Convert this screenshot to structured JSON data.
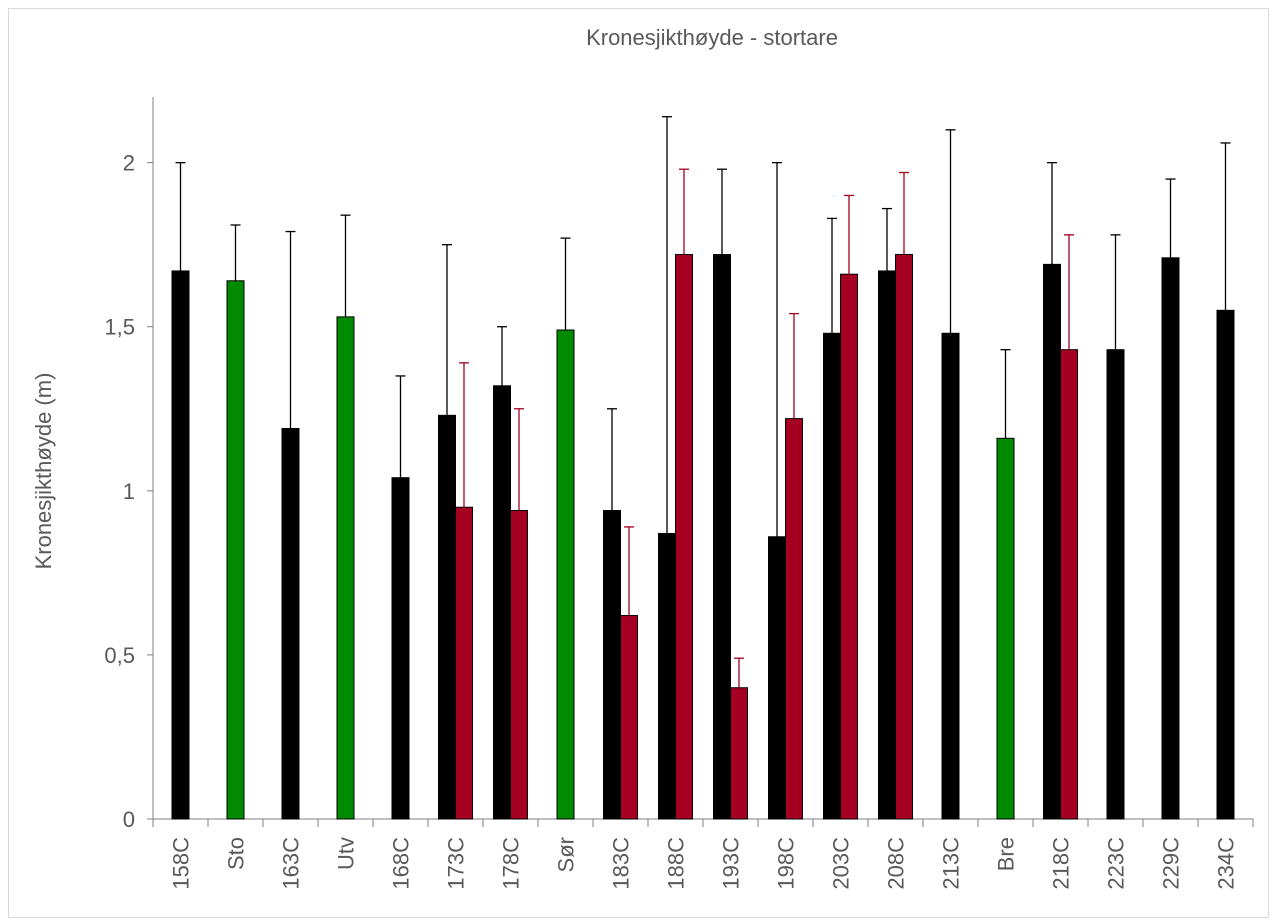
{
  "chart_data": {
    "type": "bar",
    "title": "Kronesjikthøyde - stortare",
    "xlabel": "",
    "ylabel": "Kronesjikthøyde (m)",
    "ylim": [
      0,
      2.2
    ],
    "yticks": [
      0,
      0.5,
      1,
      1.5,
      2
    ],
    "ytick_labels": [
      "0",
      "0,5",
      "1",
      "1,5",
      "2"
    ],
    "grid": false,
    "legend": "none",
    "categories": [
      "158C",
      "Sto",
      "163C",
      "Utv",
      "168C",
      "173C",
      "178C",
      "Sør",
      "183C",
      "188C",
      "193C",
      "198C",
      "203C",
      "208C",
      "213C",
      "Bre",
      "218C",
      "223C",
      "229C",
      "234C"
    ],
    "colors": {
      "black": "#000000",
      "green": "#008a00",
      "red": "#a50021",
      "axis": "#808080"
    },
    "series": [
      {
        "color": "black",
        "values": [
          1.67,
          null,
          1.19,
          null,
          1.04,
          1.23,
          1.32,
          null,
          0.94,
          0.87,
          1.72,
          0.86,
          1.48,
          1.67,
          1.48,
          null,
          1.69,
          1.43,
          1.71,
          1.55
        ],
        "errors": [
          0.33,
          null,
          0.6,
          null,
          0.31,
          0.52,
          0.18,
          null,
          0.31,
          1.27,
          0.26,
          1.14,
          0.35,
          0.19,
          0.62,
          null,
          0.31,
          0.35,
          0.24,
          0.51
        ]
      },
      {
        "color": "green",
        "values": [
          null,
          1.64,
          null,
          1.53,
          null,
          null,
          null,
          1.49,
          null,
          null,
          null,
          null,
          null,
          null,
          null,
          1.16,
          null,
          null,
          null,
          null
        ],
        "errors": [
          null,
          0.17,
          null,
          0.31,
          null,
          null,
          null,
          0.28,
          null,
          null,
          null,
          null,
          null,
          null,
          null,
          0.27,
          null,
          null,
          null,
          null
        ]
      },
      {
        "color": "red",
        "values": [
          null,
          null,
          null,
          null,
          null,
          0.95,
          0.94,
          null,
          0.62,
          1.72,
          0.4,
          1.22,
          1.66,
          1.72,
          null,
          null,
          1.43,
          null,
          null,
          null
        ],
        "errors": [
          null,
          null,
          null,
          null,
          null,
          0.44,
          0.31,
          null,
          0.27,
          0.26,
          0.09,
          0.32,
          0.24,
          0.25,
          null,
          null,
          0.35,
          null,
          null,
          null
        ]
      }
    ]
  }
}
